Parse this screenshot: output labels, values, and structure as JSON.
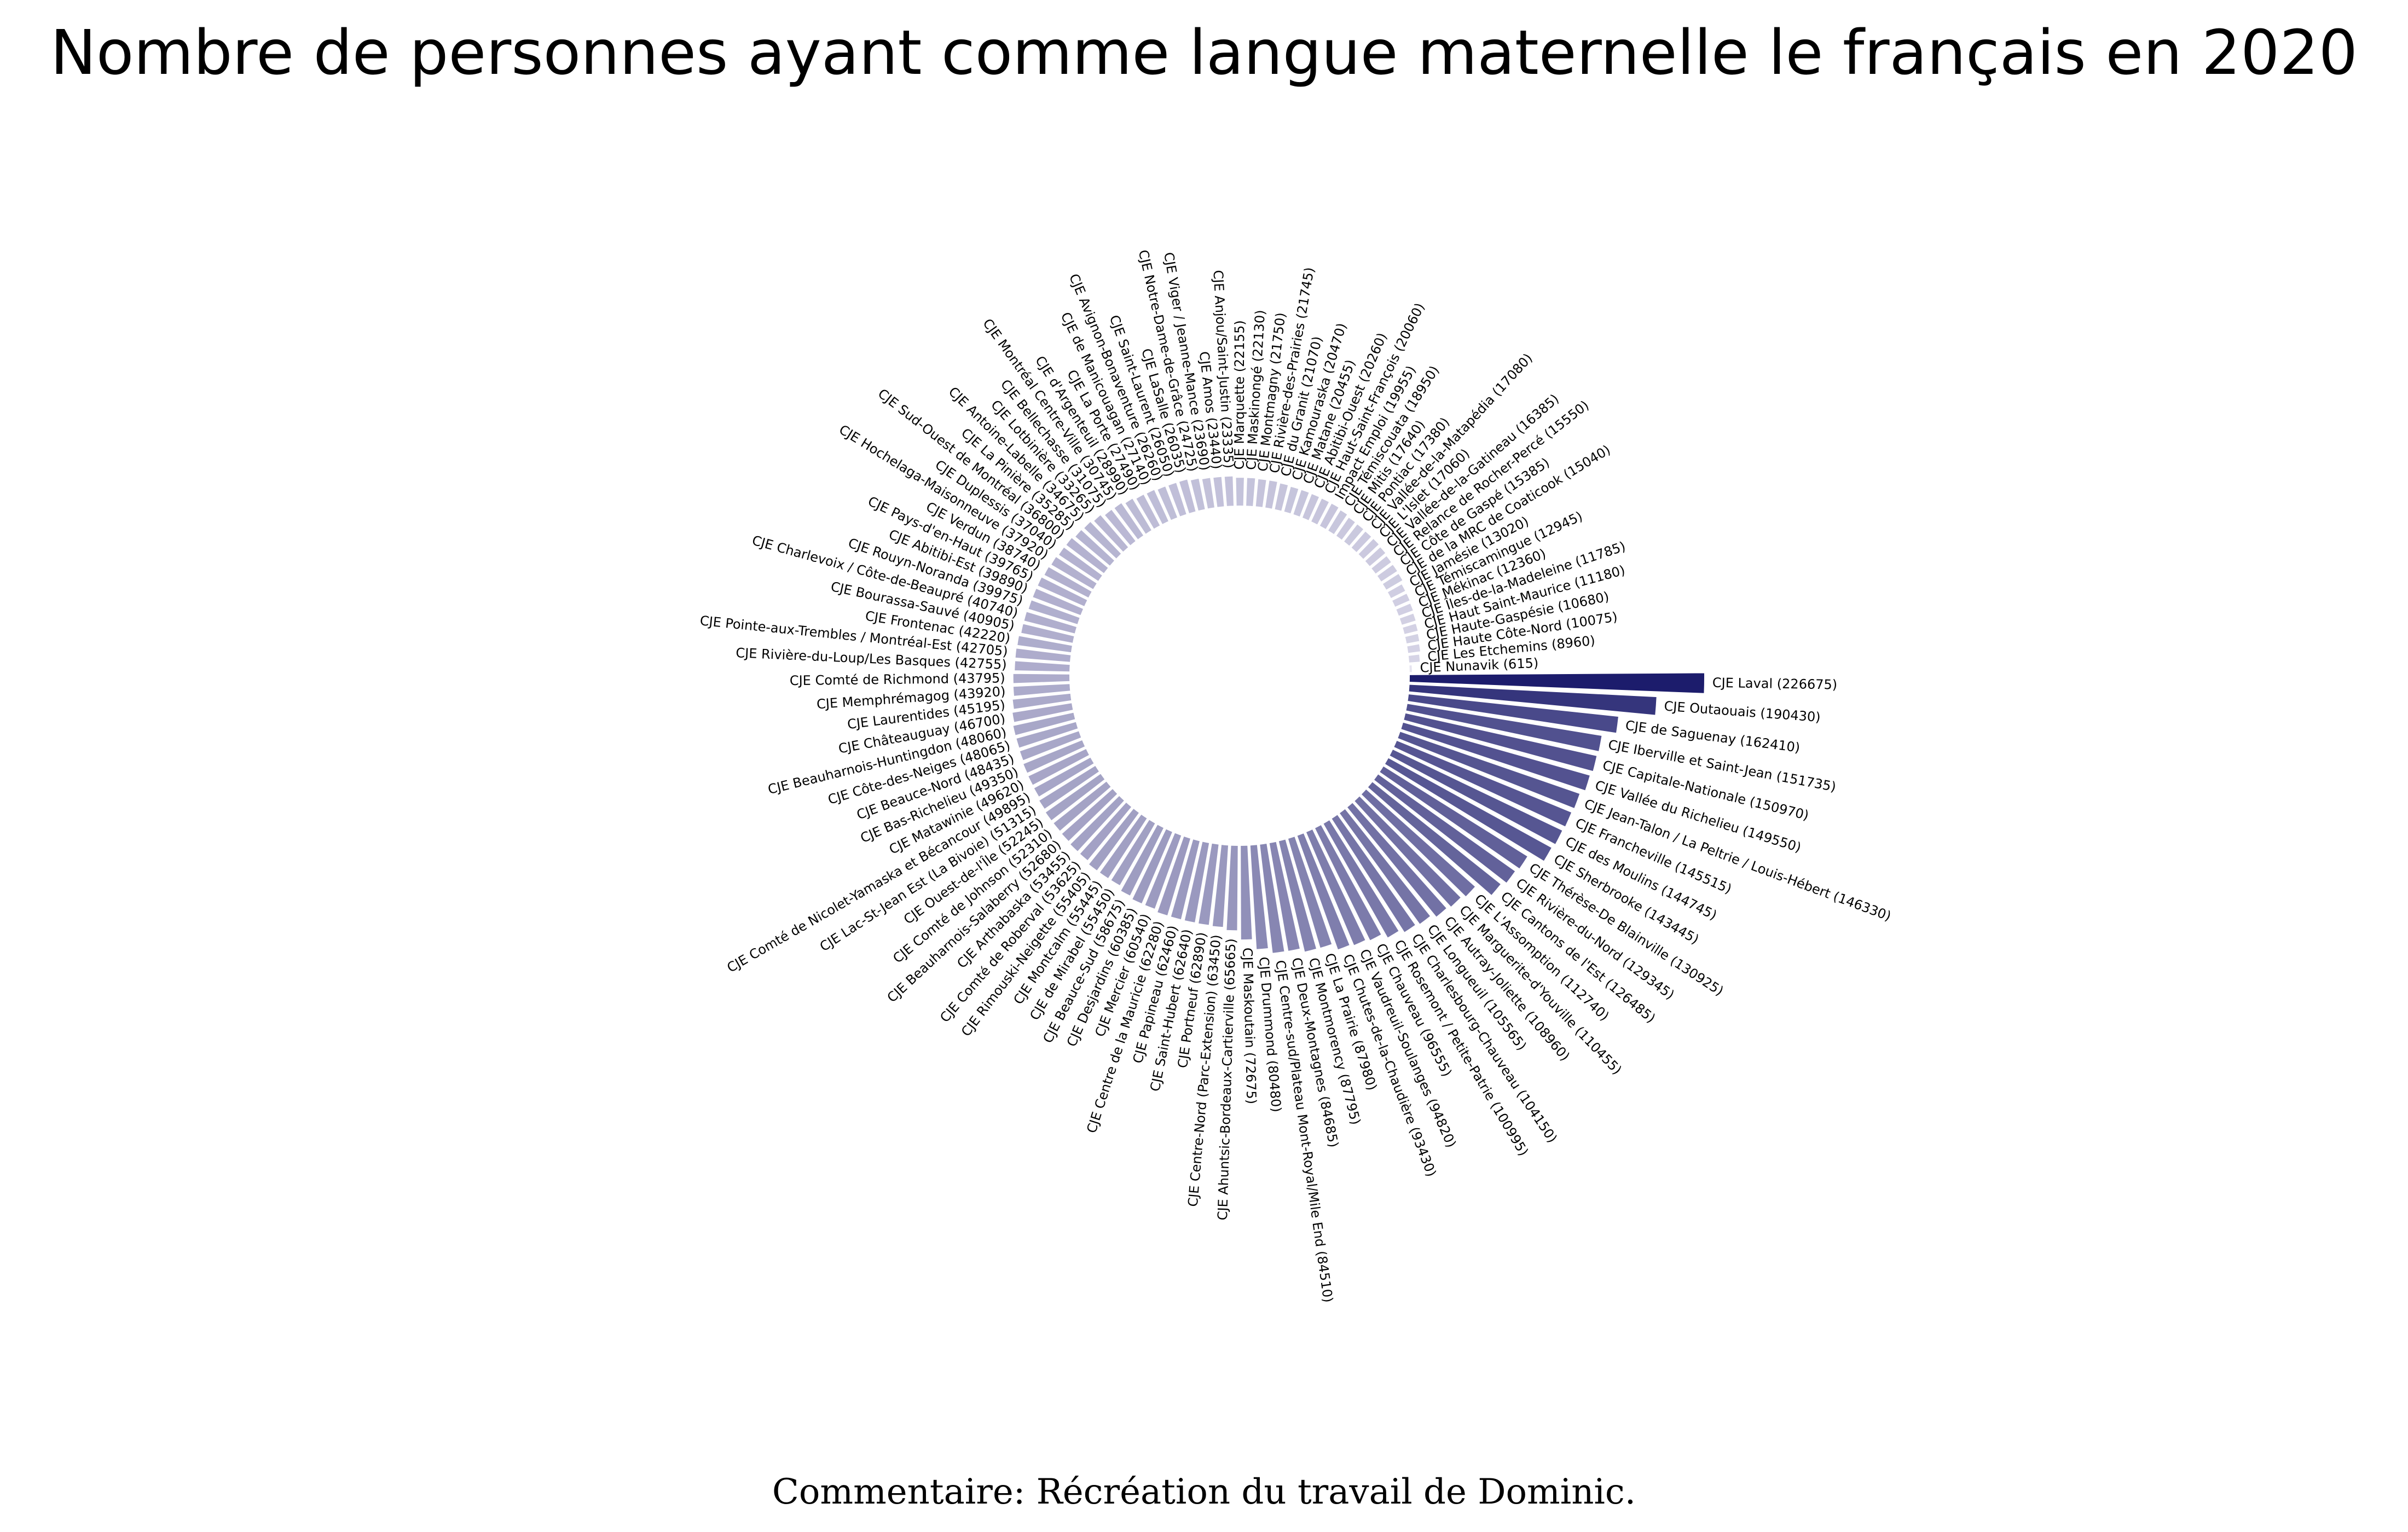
{
  "chart_data": {
    "type": "bar",
    "layout": "circular",
    "title": "Nombre de personnes ayant comme langue maternelle le français en 2020",
    "caption": "Commentaire: Récréation du travail de Dominic.",
    "colors": {
      "high": "#1c1c6c",
      "low": "#e8e6f2"
    },
    "categories": [
      "CJE Laval (226675)",
      "CJE Outaouais (190430)",
      "CJE de Saguenay (162410)",
      "CJE Iberville et Saint-Jean (151735)",
      "CJE Capitale-Nationale (150970)",
      "CJE Vallée du Richelieu (149550)",
      "CJE Jean-Talon / La Peltrie / Louis-Hébert (146330)",
      "CJE Francheville (145515)",
      "CJE des Moulins (144745)",
      "CJE Sherbrooke (143445)",
      "CJE Thérèse-De Blainville (130925)",
      "CJE Rivière-du-Nord (129345)",
      "CJE Cantons de l'Est (126485)",
      "CJE L'Assomption (112740)",
      "CJE Marguerite-d'Youville (110455)",
      "CJE Autray-Joliette (108960)",
      "CJE Longueuil (105565)",
      "CJE Charlesbourg-Chauveau (104150)",
      "CJE Rosemont / Petite-Patrie (100995)",
      "CJE Chauveau (96555)",
      "CJE Vaudreuil-Soulanges (94820)",
      "CJE Chutes-de-la-Chaudière (93430)",
      "CJE La Prairie (87980)",
      "CJE Montmorency (87795)",
      "CJE Deux-Montagnes (84685)",
      "CJE Centre-sud/Plateau Mont-Royal/Mile End (84510)",
      "CJE Drummond (80480)",
      "CJE Maskoutain (72675)",
      "CJE Ahuntsic-Bordeaux-Cartierville (65665)",
      "CJE Centre-Nord (Parc-Extension) (63450)",
      "CJE Portneuf (62890)",
      "CJE Saint-Hubert (62640)",
      "CJE Papineau (62460)",
      "CJE Centre de la Mauricie (62280)",
      "CJE Mercier (60540)",
      "CJE Desjardins (60385)",
      "CJE Beauce-Sud (58675)",
      "CJE de Mirabel (55450)",
      "CJE Montcalm (55445)",
      "CJE Rimouski-Neigette (55405)",
      "CJE Comté de Roberval (53625)",
      "CJE Arthabaska (53455)",
      "CJE Beauharnois-Salaberry (52680)",
      "CJE Comté de Johnson (52310)",
      "CJE Ouest-de-l'Île (52245)",
      "CJE Lac-St-Jean Est (La Bivoie) (51315)",
      "CJE Comté de Nicolet-Yamaska et Bécancour (49895)",
      "CJE Matawinie (49620)",
      "CJE Bas-Richelieu (49350)",
      "CJE Beauce-Nord (48435)",
      "CJE Côte-des-Neiges (48065)",
      "CJE Beauharnois-Huntingdon (48060)",
      "CJE Châteauguay (46700)",
      "CJE Laurentides (45195)",
      "CJE Memphrémagog (43920)",
      "CJE Comté de Richmond (43795)",
      "CJE Rivière-du-Loup/Les Basques (42755)",
      "CJE Pointe-aux-Trembles / Montréal-Est (42705)",
      "CJE Frontenac (42220)",
      "CJE Bourassa-Sauvé (40905)",
      "CJE Charlevoix / Côte-de-Beaupré (40740)",
      "CJE Rouyn-Noranda (39975)",
      "CJE Abitibi-Est (39890)",
      "CJE Pays-d'en-Haut (39765)",
      "CJE Verdun (38740)",
      "CJE Hochelaga-Maisonneuve (37920)",
      "CJE Duplessis (37040)",
      "CJE Sud-Ouest de Montréal (36800)",
      "CJE La Pinière (35285)",
      "CJE Antoine-Labelle (34675)",
      "CJE Lotbinière (33265)",
      "CJE Bellechasse (31075)",
      "CJE Montréal Centre-Ville (30745)",
      "CJE d'Argenteuil (28990)",
      "CJE La Porte (27490)",
      "CJE de Manicouagan (27140)",
      "CJE Avignon-Bonaventure (26260)",
      "CJE Saint-Laurent (26050)",
      "CJE LaSalle (26035)",
      "CJE Notre-Dame-de-Grâce (24725)",
      "CJE Viger / Jeanne-Mance (23690)",
      "CJE Amos (23440)",
      "CJE Anjou/Saint-Justin (23335)",
      "CJE Marquette (22155)",
      "CJE Maskinongé (22130)",
      "CJE Montmagny (21750)",
      "CJE Rivière-des-Prairies (21745)",
      "CJE du Granit (21070)",
      "CJE Kamouraska (20470)",
      "CJE Matane (20455)",
      "CJE Abitibi-Ouest (20260)",
      "CJE Haut-Saint-François (20060)",
      "Impact Emploi (19955)",
      "CJE Témiscouata (18950)",
      "CJE Mitis (17640)",
      "CJE Pontiac (17380)",
      "CJE Vallée-de-la-Matapédia (17080)",
      "CJE L'Islet (17060)",
      "CJE Vallée-de-la-Gatineau (16385)",
      "CJE Relance de Rocher-Percé (15550)",
      "CJE Côte de Gaspé (15385)",
      "CJE de la MRC de Coaticook (15040)",
      "CJE Jamésie (13020)",
      "CJE Témiscamingue (12945)",
      "CJE Mékinac (12360)",
      "CJE Îles-de-la-Madeleine (11785)",
      "CJE Haut Saint-Maurice (11180)",
      "CJE Haute-Gaspésie (10680)",
      "CJE Haute Côte-Nord (10075)",
      "CJE Les Etchemins (8960)",
      "CJE  Nunavik (615)"
    ],
    "values": [
      226675,
      190430,
      162410,
      151735,
      150970,
      149550,
      146330,
      145515,
      144745,
      143445,
      130925,
      129345,
      126485,
      112740,
      110455,
      108960,
      105565,
      104150,
      100995,
      96555,
      94820,
      93430,
      87980,
      87795,
      84685,
      84510,
      80480,
      72675,
      65665,
      63450,
      62890,
      62640,
      62460,
      62280,
      60540,
      60385,
      58675,
      55450,
      55445,
      55405,
      53625,
      53455,
      52680,
      52310,
      52245,
      51315,
      49895,
      49620,
      49350,
      48435,
      48065,
      48060,
      46700,
      45195,
      43920,
      43795,
      42755,
      42705,
      42220,
      40905,
      40740,
      39975,
      39890,
      39765,
      38740,
      37920,
      37040,
      36800,
      35285,
      34675,
      33265,
      31075,
      30745,
      28990,
      27490,
      27140,
      26260,
      26050,
      26035,
      24725,
      23690,
      23440,
      23335,
      22155,
      22130,
      21750,
      21745,
      21070,
      20470,
      20455,
      20260,
      20060,
      19955,
      18950,
      17640,
      17380,
      17080,
      17060,
      16385,
      15550,
      15385,
      15040,
      13020,
      12945,
      12360,
      11785,
      11180,
      10680,
      10075,
      8960,
      615
    ]
  }
}
